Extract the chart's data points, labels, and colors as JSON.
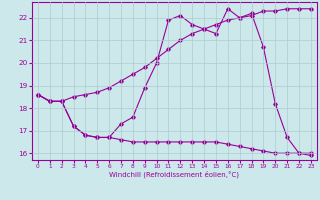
{
  "xlabel": "Windchill (Refroidissement éolien,°C)",
  "bg_color": "#cce8ea",
  "line_color": "#990099",
  "xlim": [
    -0.5,
    23.5
  ],
  "ylim": [
    15.7,
    22.7
  ],
  "yticks": [
    16,
    17,
    18,
    19,
    20,
    21,
    22
  ],
  "xticks": [
    0,
    1,
    2,
    3,
    4,
    5,
    6,
    7,
    8,
    9,
    10,
    11,
    12,
    13,
    14,
    15,
    16,
    17,
    18,
    19,
    20,
    21,
    22,
    23
  ],
  "line1_x": [
    0,
    1,
    2,
    3,
    4,
    5,
    6,
    7,
    8,
    9,
    10,
    11,
    12,
    13,
    14,
    15,
    16,
    17,
    18,
    19,
    20,
    21,
    22,
    23
  ],
  "line1_y": [
    18.6,
    18.3,
    18.3,
    18.5,
    18.6,
    18.7,
    18.9,
    19.2,
    19.5,
    19.8,
    20.2,
    20.6,
    21.0,
    21.3,
    21.5,
    21.7,
    21.9,
    22.0,
    22.1,
    22.3,
    22.3,
    22.4,
    22.4,
    22.4
  ],
  "line2_x": [
    0,
    1,
    2,
    3,
    4,
    5,
    6,
    7,
    8,
    9,
    10,
    11,
    12,
    13,
    14,
    15,
    16,
    17,
    18,
    19,
    20,
    21,
    22,
    23
  ],
  "line2_y": [
    18.6,
    18.3,
    18.3,
    17.2,
    16.8,
    16.7,
    16.7,
    16.6,
    16.5,
    16.5,
    16.5,
    16.5,
    16.5,
    16.5,
    16.5,
    16.5,
    16.4,
    16.3,
    16.2,
    16.1,
    16.0,
    16.0,
    16.0,
    15.9
  ],
  "line3_x": [
    0,
    1,
    2,
    3,
    4,
    5,
    6,
    7,
    8,
    9,
    10,
    11,
    12,
    13,
    14,
    15,
    16,
    17,
    18,
    19,
    20,
    21,
    22,
    23
  ],
  "line3_y": [
    18.6,
    18.3,
    18.3,
    17.2,
    16.8,
    16.7,
    16.7,
    17.3,
    17.6,
    18.9,
    20.0,
    21.9,
    22.1,
    21.7,
    21.5,
    21.3,
    22.4,
    22.0,
    22.2,
    20.7,
    18.2,
    16.7,
    16.0,
    16.0
  ],
  "grid_color": "#aacccc",
  "marker": "D",
  "marker_size": 1.8,
  "lw": 0.8
}
